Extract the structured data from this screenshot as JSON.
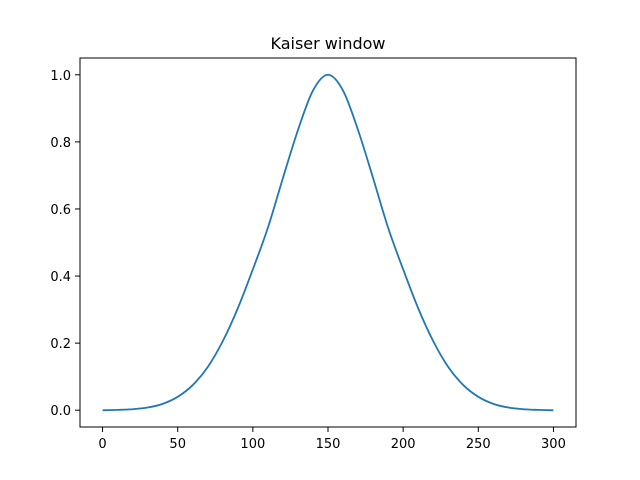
{
  "chart_data": {
    "type": "line",
    "title": "Kaiser window",
    "xlabel": "",
    "ylabel": "",
    "xlim": [
      -15,
      315
    ],
    "ylim": [
      -0.05,
      1.05
    ],
    "xticks": [
      0,
      50,
      100,
      150,
      200,
      250,
      300
    ],
    "yticks": [
      0.0,
      0.2,
      0.4,
      0.6,
      0.8,
      1.0
    ],
    "xtick_labels": [
      "0",
      "50",
      "100",
      "150",
      "200",
      "250",
      "300"
    ],
    "ytick_labels": [
      "0.0",
      "0.2",
      "0.4",
      "0.6",
      "0.8",
      "1.0"
    ],
    "grid": false,
    "legend": false,
    "series": [
      {
        "color": "#1f77b4",
        "x": [
          0,
          10,
          20,
          30,
          40,
          50,
          60,
          70,
          80,
          90,
          100,
          110,
          120,
          130,
          140,
          150,
          160,
          170,
          180,
          190,
          200,
          210,
          220,
          230,
          240,
          250,
          260,
          270,
          280,
          290,
          300
        ],
        "y": [
          0.0,
          0.001,
          0.003,
          0.008,
          0.019,
          0.04,
          0.075,
          0.129,
          0.206,
          0.304,
          0.42,
          0.544,
          0.692,
          0.835,
          0.953,
          1.0,
          0.953,
          0.835,
          0.692,
          0.544,
          0.42,
          0.304,
          0.206,
          0.129,
          0.075,
          0.04,
          0.019,
          0.008,
          0.003,
          0.001,
          0.0
        ]
      }
    ]
  }
}
